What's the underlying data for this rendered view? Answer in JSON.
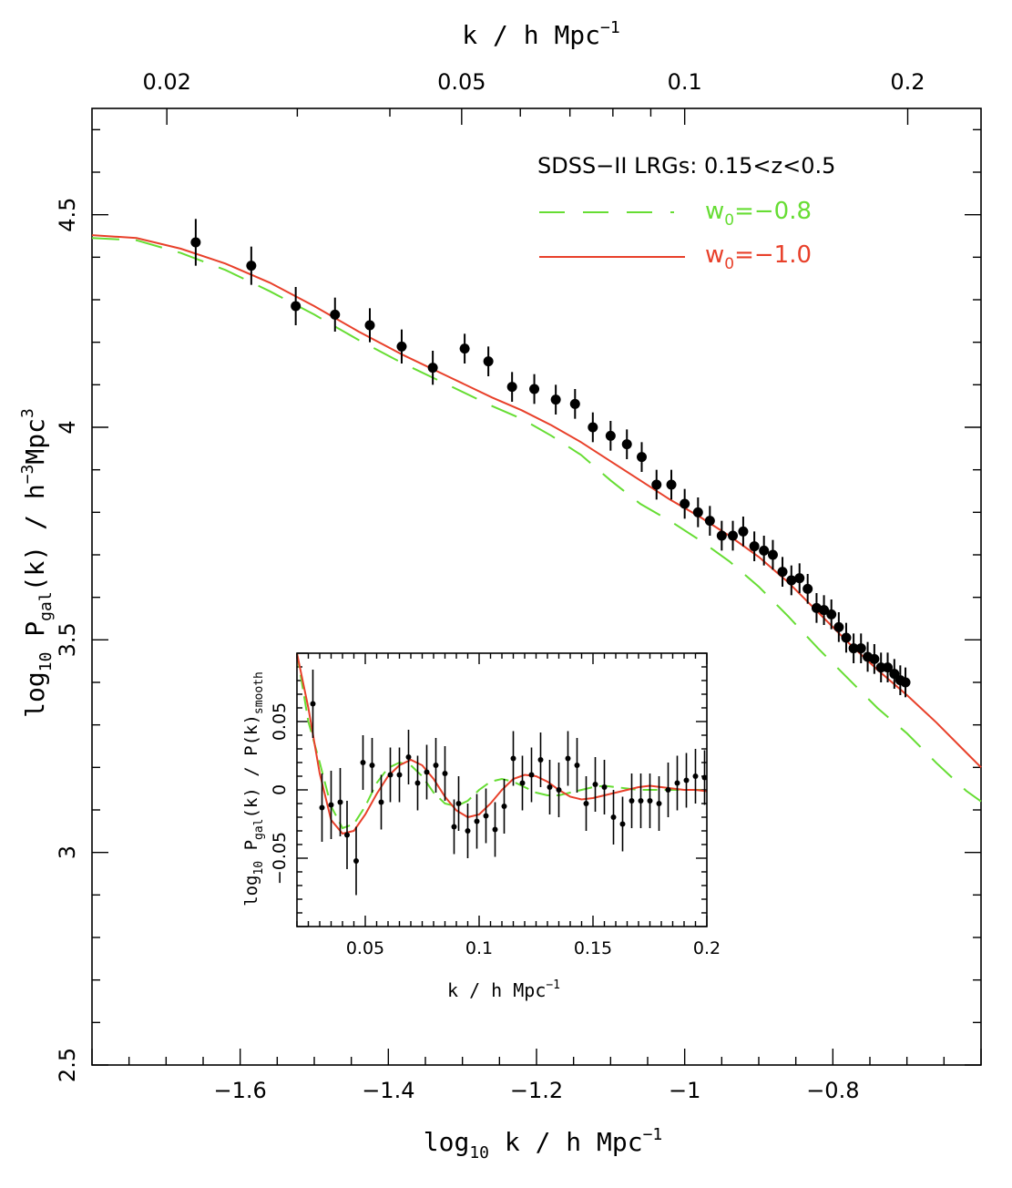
{
  "chart_data": [
    {
      "type": "scatter",
      "title": "SDSS−II LRGs: 0.15<z<0.5",
      "xlabel": "log10 k / h Mpc^-1",
      "ylabel": "log10 Pgal(k) / h^-3Mpc^3",
      "top_xlabel": "k / h Mpc^-1",
      "xlim": [
        -1.8,
        -0.6
      ],
      "ylim": [
        2.5,
        4.75
      ],
      "x_ticks": [
        "-1.6",
        "-1.4",
        "-1.2",
        "-1",
        "-0.8"
      ],
      "x_tick_values": [
        -1.6,
        -1.4,
        -1.2,
        -1.0,
        -0.8
      ],
      "y_ticks": [
        "2.5",
        "3",
        "3.5",
        "4",
        "4.5"
      ],
      "y_tick_values": [
        2.5,
        3.0,
        3.5,
        4.0,
        4.5
      ],
      "top_ticks": [
        "0.02",
        "0.05",
        "0.1",
        "0.2"
      ],
      "top_tick_values": [
        0.02,
        0.05,
        0.1,
        0.2
      ],
      "legend": [
        {
          "name": "w0=−0.8",
          "sub": "0",
          "color": "#66dd33",
          "dash": true
        },
        {
          "name": "w0=−1.0",
          "sub": "0",
          "color": "#e8402a",
          "dash": false
        }
      ],
      "legend_text": {
        "green_w": "w",
        "green_sub": "0",
        "green_val": "=−0.8",
        "red_w": "w",
        "red_sub": "0",
        "red_val": "=−1.0"
      },
      "series": [
        {
          "name": "w0=−1.0",
          "color": "#e8402a",
          "x": [
            -1.8,
            -1.74,
            -1.68,
            -1.62,
            -1.56,
            -1.5,
            -1.44,
            -1.38,
            -1.32,
            -1.26,
            -1.22,
            -1.18,
            -1.14,
            -1.1,
            -1.06,
            -1.02,
            -0.98,
            -0.94,
            -0.9,
            -0.86,
            -0.82,
            -0.78,
            -0.74,
            -0.7,
            -0.66,
            -0.62,
            -0.6
          ],
          "y": [
            4.452,
            4.445,
            4.42,
            4.385,
            4.34,
            4.285,
            4.225,
            4.17,
            4.12,
            4.07,
            4.04,
            4.005,
            3.965,
            3.92,
            3.875,
            3.83,
            3.79,
            3.745,
            3.695,
            3.635,
            3.565,
            3.495,
            3.43,
            3.37,
            3.305,
            3.235,
            3.2
          ]
        },
        {
          "name": "w0=−0.8",
          "color": "#66dd33",
          "x": [
            -1.8,
            -1.74,
            -1.68,
            -1.62,
            -1.56,
            -1.5,
            -1.44,
            -1.38,
            -1.32,
            -1.26,
            -1.22,
            -1.18,
            -1.14,
            -1.1,
            -1.06,
            -1.02,
            -0.98,
            -0.94,
            -0.9,
            -0.86,
            -0.82,
            -0.78,
            -0.74,
            -0.7,
            -0.66,
            -0.62,
            -0.6
          ],
          "y": [
            4.445,
            4.44,
            4.41,
            4.37,
            4.32,
            4.265,
            4.205,
            4.15,
            4.1,
            4.05,
            4.02,
            3.98,
            3.935,
            3.875,
            3.82,
            3.78,
            3.735,
            3.685,
            3.625,
            3.555,
            3.48,
            3.41,
            3.34,
            3.28,
            3.21,
            3.145,
            3.12
          ]
        }
      ],
      "points": {
        "x": [
          -1.66,
          -1.585,
          -1.525,
          -1.472,
          -1.425,
          -1.382,
          -1.34,
          -1.297,
          -1.265,
          -1.233,
          -1.203,
          -1.174,
          -1.148,
          -1.124,
          -1.1,
          -1.078,
          -1.058,
          -1.038,
          -1.018,
          -1.0,
          -0.982,
          -0.966,
          -0.95,
          -0.935,
          -0.921,
          -0.906,
          -0.893,
          -0.881,
          -0.868,
          -0.856,
          -0.845,
          -0.834,
          -0.822,
          -0.812,
          -0.802,
          -0.792,
          -0.782,
          -0.772,
          -0.762,
          -0.753,
          -0.744,
          -0.735,
          -0.726,
          -0.717,
          -0.709,
          -0.702
        ],
        "y": [
          4.435,
          4.38,
          4.285,
          4.265,
          4.24,
          4.19,
          4.14,
          4.185,
          4.155,
          4.095,
          4.09,
          4.065,
          4.055,
          4.0,
          3.98,
          3.96,
          3.93,
          3.865,
          3.865,
          3.82,
          3.8,
          3.78,
          3.745,
          3.745,
          3.755,
          3.72,
          3.71,
          3.7,
          3.66,
          3.64,
          3.645,
          3.62,
          3.575,
          3.57,
          3.56,
          3.53,
          3.505,
          3.48,
          3.48,
          3.46,
          3.455,
          3.435,
          3.435,
          3.42,
          3.405,
          3.4
        ],
        "err": [
          0.055,
          0.045,
          0.045,
          0.04,
          0.04,
          0.04,
          0.04,
          0.035,
          0.035,
          0.035,
          0.035,
          0.035,
          0.035,
          0.035,
          0.035,
          0.035,
          0.035,
          0.035,
          0.035,
          0.035,
          0.035,
          0.035,
          0.035,
          0.035,
          0.035,
          0.035,
          0.035,
          0.035,
          0.035,
          0.035,
          0.035,
          0.035,
          0.035,
          0.035,
          0.035,
          0.035,
          0.035,
          0.035,
          0.035,
          0.035,
          0.035,
          0.035,
          0.035,
          0.035,
          0.035,
          0.035
        ]
      }
    },
    {
      "type": "scatter",
      "title": "",
      "xlabel": "k / h Mpc^-1",
      "ylabel": "log10 Pgal(k) / P(k)smooth",
      "xlim": [
        0.02,
        0.2
      ],
      "ylim": [
        -0.1,
        0.1
      ],
      "x_ticks": [
        "0.05",
        "0.1",
        "0.15",
        "0.2"
      ],
      "x_tick_values": [
        0.05,
        0.1,
        0.15,
        0.2
      ],
      "y_ticks": [
        "-0.05",
        "0",
        "0.05"
      ],
      "y_tick_values": [
        -0.05,
        0.0,
        0.05
      ],
      "series": [
        {
          "name": "w0=−1.0",
          "color": "#e8402a",
          "x": [
            0.02,
            0.025,
            0.03,
            0.035,
            0.04,
            0.045,
            0.05,
            0.055,
            0.06,
            0.065,
            0.07,
            0.075,
            0.08,
            0.085,
            0.09,
            0.095,
            0.1,
            0.105,
            0.11,
            0.115,
            0.12,
            0.125,
            0.13,
            0.135,
            0.14,
            0.145,
            0.15,
            0.155,
            0.16,
            0.165,
            0.17,
            0.175,
            0.18,
            0.185,
            0.19,
            0.195,
            0.2
          ],
          "y": [
            0.1,
            0.06,
            0.012,
            -0.022,
            -0.032,
            -0.03,
            -0.018,
            -0.003,
            0.01,
            0.018,
            0.022,
            0.018,
            0.008,
            -0.005,
            -0.015,
            -0.02,
            -0.018,
            -0.01,
            0.0,
            0.008,
            0.011,
            0.01,
            0.006,
            0.0,
            -0.005,
            -0.007,
            -0.006,
            -0.004,
            -0.002,
            0.0,
            0.002,
            0.003,
            0.002,
            0.001,
            0.0,
            0.0,
            -0.001
          ]
        },
        {
          "name": "w0=−0.8",
          "color": "#66dd33",
          "x": [
            0.02,
            0.025,
            0.03,
            0.035,
            0.04,
            0.045,
            0.05,
            0.055,
            0.06,
            0.065,
            0.07,
            0.075,
            0.08,
            0.085,
            0.09,
            0.095,
            0.1,
            0.105,
            0.11,
            0.115,
            0.12,
            0.125,
            0.13,
            0.135,
            0.14,
            0.145,
            0.15,
            0.155,
            0.16,
            0.165,
            0.17,
            0.175,
            0.18,
            0.185,
            0.19,
            0.195,
            0.2
          ],
          "y": [
            0.1,
            0.05,
            0.02,
            -0.012,
            -0.028,
            -0.025,
            -0.012,
            0.005,
            0.016,
            0.02,
            0.018,
            0.01,
            -0.002,
            -0.01,
            -0.012,
            -0.008,
            0.0,
            0.006,
            0.008,
            0.006,
            0.002,
            -0.002,
            -0.004,
            -0.004,
            -0.002,
            0.0,
            0.002,
            0.003,
            0.002,
            0.001,
            0.0,
            0.0,
            0.0,
            0.0,
            0.0,
            0.0,
            0.0
          ]
        }
      ],
      "points": {
        "x": [
          0.027,
          0.031,
          0.035,
          0.039,
          0.042,
          0.046,
          0.049,
          0.053,
          0.057,
          0.061,
          0.065,
          0.069,
          0.073,
          0.077,
          0.081,
          0.085,
          0.089,
          0.091,
          0.095,
          0.099,
          0.103,
          0.107,
          0.111,
          0.115,
          0.119,
          0.123,
          0.127,
          0.131,
          0.135,
          0.139,
          0.143,
          0.147,
          0.151,
          0.155,
          0.159,
          0.163,
          0.167,
          0.171,
          0.175,
          0.179,
          0.183,
          0.187,
          0.191,
          0.195,
          0.199
        ],
        "y": [
          0.063,
          -0.013,
          -0.011,
          -0.009,
          -0.033,
          -0.052,
          0.02,
          0.018,
          -0.009,
          0.011,
          0.011,
          0.024,
          0.005,
          0.013,
          0.018,
          0.012,
          -0.027,
          -0.01,
          -0.03,
          -0.023,
          -0.019,
          -0.029,
          -0.012,
          0.023,
          0.005,
          0.011,
          0.022,
          0.002,
          0.0,
          0.023,
          0.018,
          -0.01,
          0.004,
          0.002,
          -0.02,
          -0.025,
          -0.008,
          -0.008,
          -0.008,
          -0.01,
          0.0,
          0.005,
          0.007,
          0.01,
          0.009
        ],
        "err": [
          0.025,
          0.025,
          0.025,
          0.025,
          0.025,
          0.025,
          0.02,
          0.02,
          0.02,
          0.02,
          0.02,
          0.02,
          0.02,
          0.02,
          0.02,
          0.02,
          0.02,
          0.02,
          0.02,
          0.02,
          0.02,
          0.02,
          0.02,
          0.02,
          0.02,
          0.02,
          0.02,
          0.02,
          0.02,
          0.02,
          0.02,
          0.02,
          0.02,
          0.02,
          0.02,
          0.02,
          0.02,
          0.02,
          0.02,
          0.02,
          0.02,
          0.02,
          0.02,
          0.02,
          0.02
        ]
      }
    }
  ]
}
